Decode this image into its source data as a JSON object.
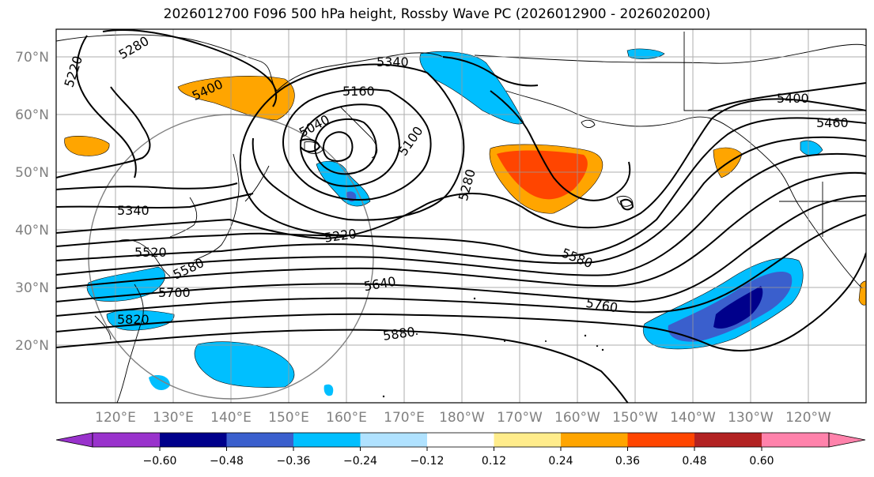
{
  "title": "2026012700 F096 500 hPa height, Rossby Wave PC (2026012900 - 2026020200)",
  "lat_labels": [
    "70°N",
    "60°N",
    "50°N",
    "40°N",
    "30°N",
    "20°N"
  ],
  "lon_labels": [
    "120°E",
    "130°E",
    "140°E",
    "150°E",
    "160°E",
    "170°E",
    "180°W",
    "170°W",
    "160°W",
    "150°W",
    "140°W",
    "130°W",
    "120°W"
  ],
  "contour_labels": [
    "5220",
    "5280",
    "5340",
    "5400",
    "5160",
    "5040",
    "5100",
    "5280",
    "5400",
    "5460",
    "5340",
    "5220",
    "5520",
    "5580",
    "5640",
    "5700",
    "5760",
    "5820",
    "5880",
    "5580"
  ],
  "colorbar": {
    "ticks": [
      "−0.60",
      "−0.48",
      "−0.36",
      "−0.24",
      "−0.12",
      "0.12",
      "0.24",
      "0.36",
      "0.48",
      "0.60"
    ],
    "colors": [
      "#9932cc",
      "#00008b",
      "#3a5fcd",
      "#00bfff",
      "#b0e2ff",
      "#ffffff",
      "#ffec8b",
      "#ffa500",
      "#ff4500",
      "#b22222",
      "#ff82ab"
    ]
  }
}
